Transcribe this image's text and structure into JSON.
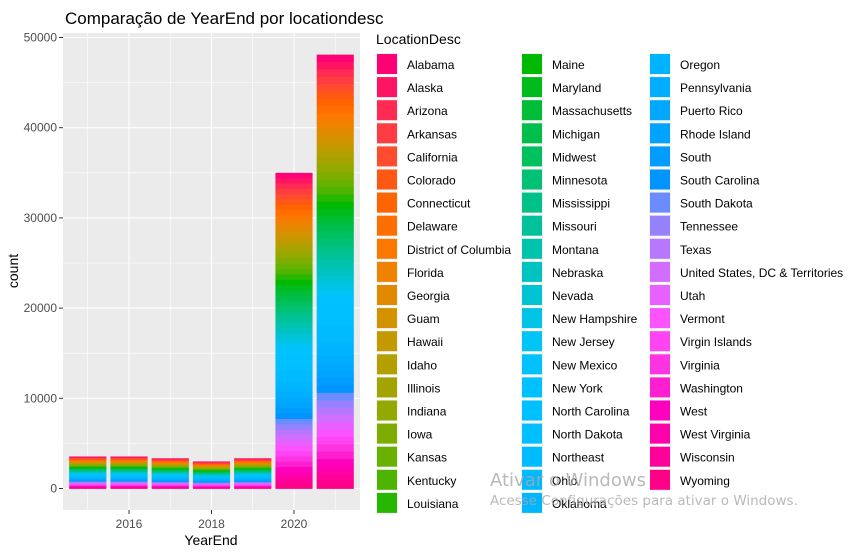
{
  "chart_data": {
    "type": "bar",
    "stacked": true,
    "title": "Comparação de YearEnd por locationdesc",
    "xlabel": "YearEnd",
    "ylabel": "count",
    "x_ticks": [
      "2016",
      "2018",
      "2020"
    ],
    "y_ticks": [
      "0",
      "10000",
      "20000",
      "30000",
      "40000",
      "50000"
    ],
    "ylim": [
      0,
      50000
    ],
    "categories": [
      2015,
      2016,
      2017,
      2018,
      2019,
      2020,
      2021
    ],
    "totals": [
      3550,
      3550,
      3350,
      3000,
      3350,
      35000,
      48100
    ],
    "legend_title": "LocationDesc",
    "legend_position": "right",
    "legend_entries": [
      "Alabama",
      "Alaska",
      "Arizona",
      "Arkansas",
      "California",
      "Colorado",
      "Connecticut",
      "Delaware",
      "District of Columbia",
      "Florida",
      "Georgia",
      "Guam",
      "Hawaii",
      "Idaho",
      "Illinois",
      "Indiana",
      "Iowa",
      "Kansas",
      "Kentucky",
      "Louisiana",
      "Maine",
      "Maryland",
      "Massachusetts",
      "Michigan",
      "Midwest",
      "Minnesota",
      "Mississippi",
      "Missouri",
      "Montana",
      "Nebraska",
      "Nevada",
      "New Hampshire",
      "New Jersey",
      "New Mexico",
      "New York",
      "North Carolina",
      "North Dakota",
      "Northeast",
      "Ohio",
      "Oklahoma",
      "Oregon",
      "Pennsylvania",
      "Puerto Rico",
      "Rhode Island",
      "South",
      "South Carolina",
      "South Dakota",
      "Tennessee",
      "Texas",
      "United States, DC & Territories",
      "Utah",
      "Vermont",
      "Virgin Islands",
      "Virginia",
      "Washington",
      "West",
      "West Virginia",
      "Wisconsin",
      "Wyoming"
    ],
    "grid": true,
    "background": "#ebebeb"
  },
  "watermark": {
    "line1": "Ativar o Windows",
    "line2": "Acesse Configurações para ativar o Windows."
  }
}
